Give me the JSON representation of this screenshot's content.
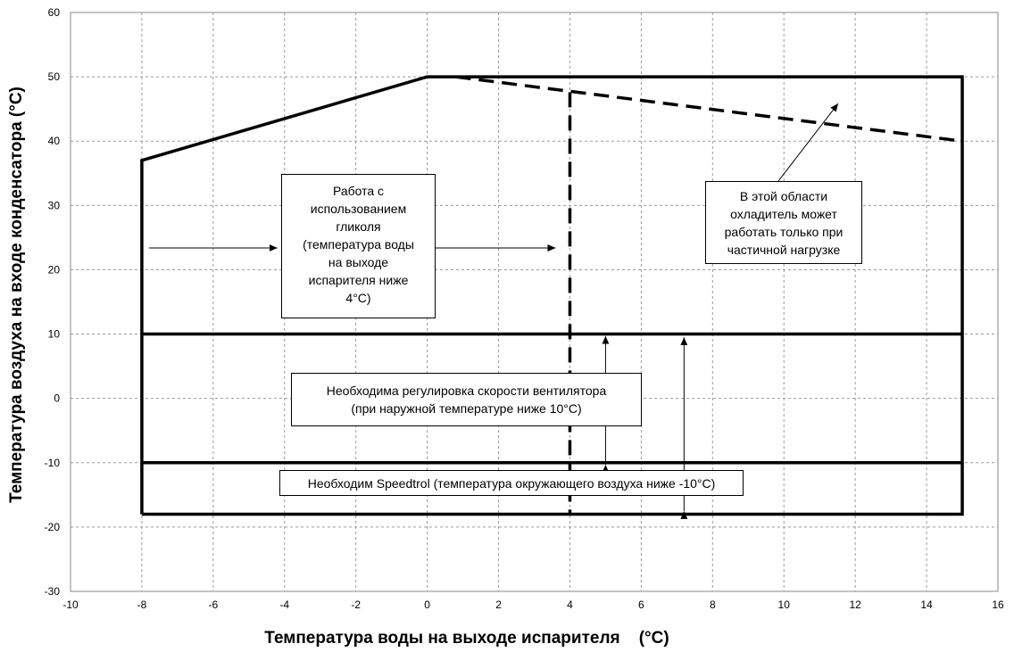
{
  "chart_data": {
    "type": "line",
    "xlabel": "Температура воды на выходе испарителя    (°C)",
    "ylabel": "Температура воздуха на входе конденсатора (°C)",
    "xlim": [
      -10,
      16
    ],
    "ylim": [
      -30,
      60
    ],
    "x_ticks": [
      -10,
      -8,
      -6,
      -4,
      -2,
      0,
      2,
      4,
      6,
      8,
      10,
      12,
      14,
      16
    ],
    "y_ticks": [
      -30,
      -20,
      -10,
      0,
      10,
      20,
      30,
      40,
      50,
      60
    ],
    "grid": true,
    "series": [
      {
        "style": "solid",
        "points": [
          [
            -8,
            -18
          ],
          [
            -8,
            37
          ],
          [
            0,
            50
          ],
          [
            15,
            50
          ],
          [
            15,
            -18
          ],
          [
            -8,
            -18
          ]
        ]
      },
      {
        "style": "solid",
        "points": [
          [
            -8,
            10
          ],
          [
            15,
            10
          ]
        ]
      },
      {
        "style": "solid",
        "points": [
          [
            -8,
            -10
          ],
          [
            15,
            -10
          ]
        ]
      },
      {
        "style": "dashed",
        "points": [
          [
            0.8,
            50
          ],
          [
            15,
            40
          ]
        ]
      },
      {
        "style": "dashed",
        "points": [
          [
            4,
            47.6
          ],
          [
            4,
            -18
          ]
        ]
      }
    ],
    "annotations": [
      {
        "id": "glycol",
        "lines": [
          "Работа с",
          "использованием",
          "гликоля",
          "(температура воды",
          "на выходе",
          "испарителя ниже",
          "4°C)"
        ]
      },
      {
        "id": "partial",
        "lines": [
          "В этой области",
          "охладитель может",
          "работать только при",
          "частичной нагрузке"
        ]
      },
      {
        "id": "fan",
        "lines": [
          "Необходима регулировка скорости вентилятора",
          "(при наружной температуре ниже 10°C)"
        ]
      },
      {
        "id": "speedtrol",
        "lines": [
          "Необходим Speedtrol (температура окружающего воздуха ниже -10°C)"
        ]
      }
    ]
  }
}
